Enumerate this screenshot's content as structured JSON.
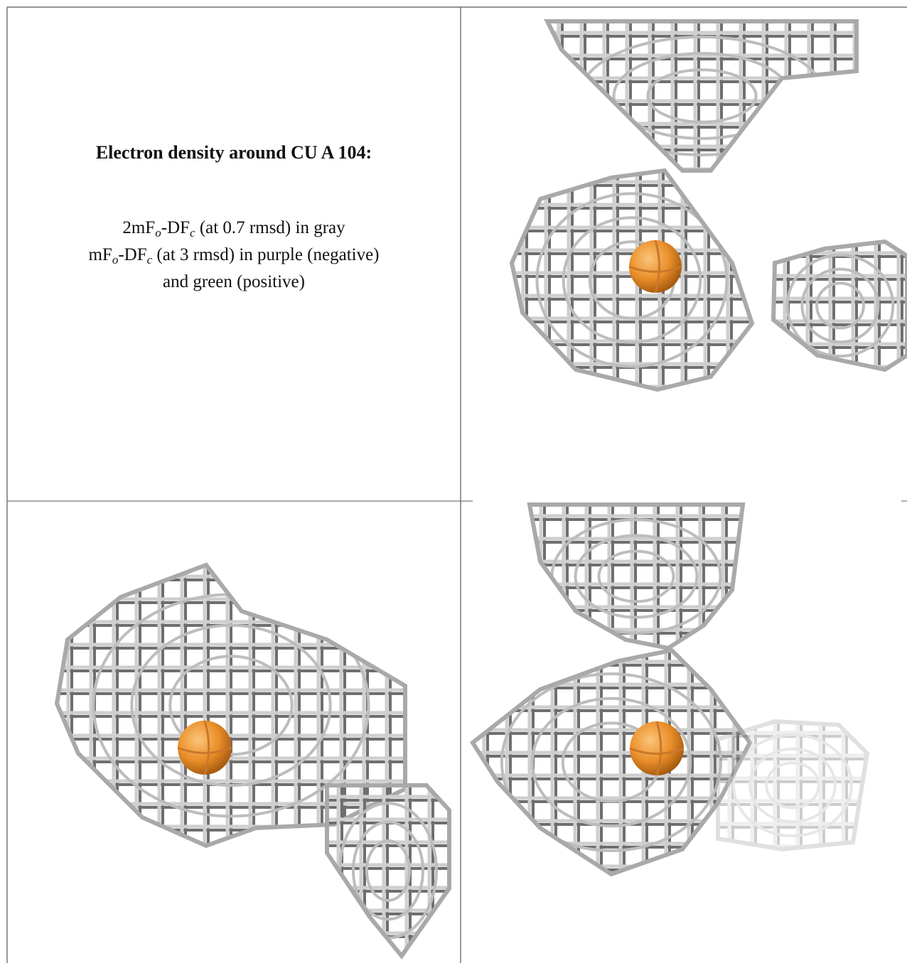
{
  "figure": {
    "title": "Electron density around CU A 104:",
    "legend": [
      [
        "2mF",
        "o",
        "-DF",
        "c",
        " (at 0.7 rmsd) in gray"
      ],
      [
        "mF",
        "o",
        "-DF",
        "c",
        " (at 3 rmsd) in purple (negative)"
      ],
      [
        "and green (positive)"
      ]
    ]
  }
}
